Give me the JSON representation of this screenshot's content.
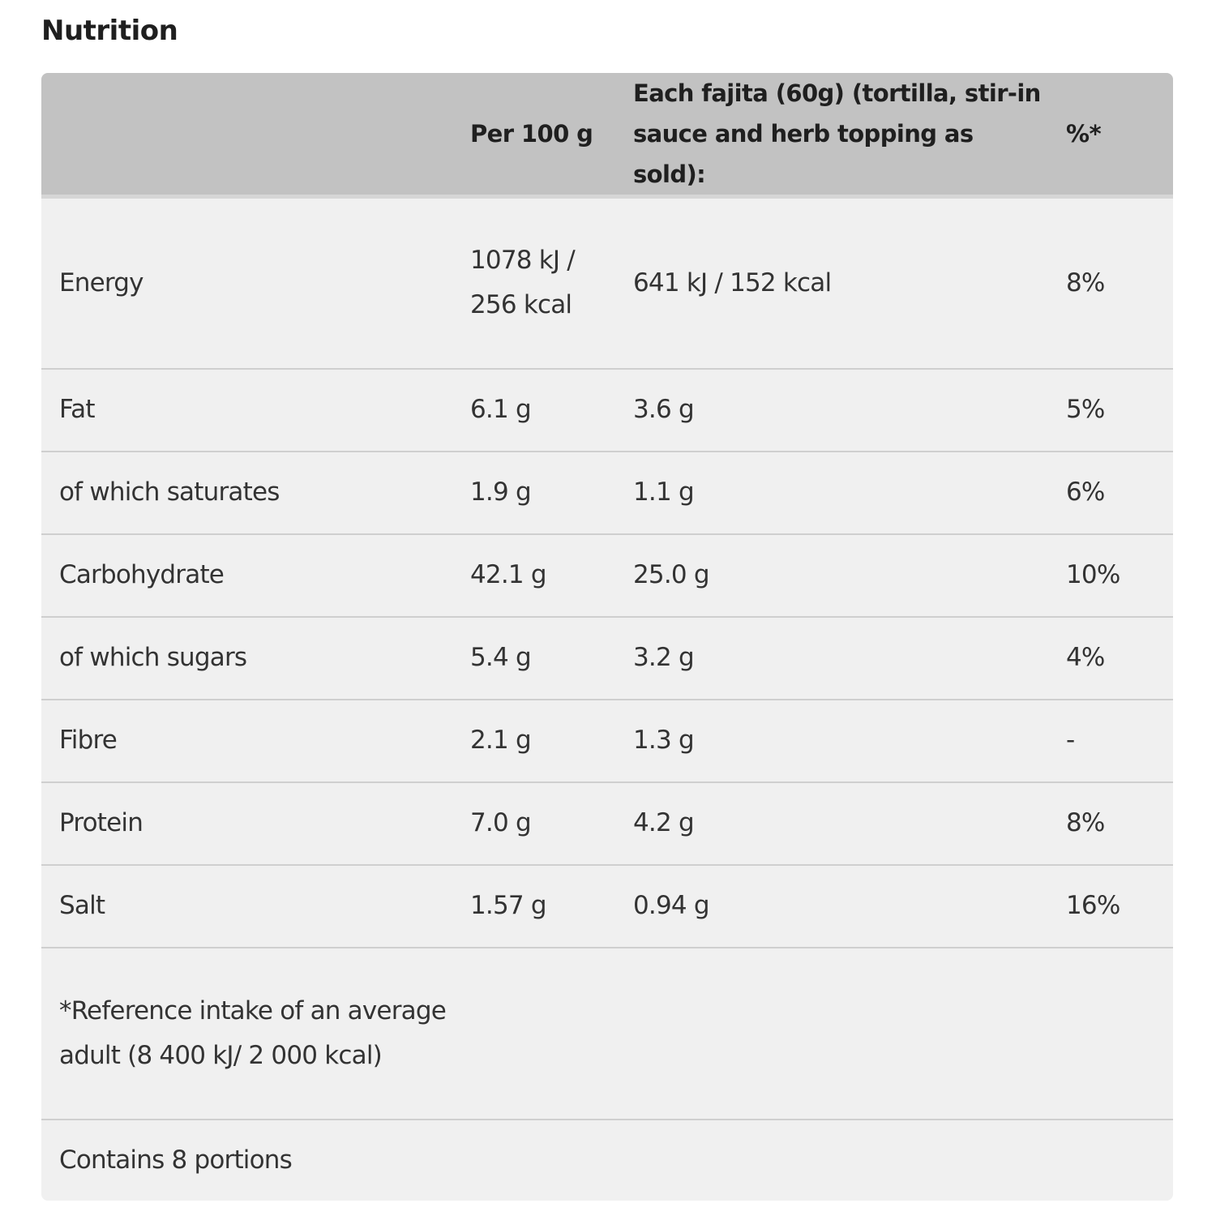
{
  "page": {
    "title": "Nutrition"
  },
  "table": {
    "headers": {
      "nutrient": "",
      "per100": "Per 100 g",
      "fajita": "Each fajita (60g) (tortilla, stir-in sauce and herb topping as sold):",
      "pct": "%*"
    },
    "rows": [
      {
        "nutrient": "Energy",
        "per100": "1078 kJ / 256 kcal",
        "fajita": "641 kJ / 152 kcal",
        "pct": "8%"
      },
      {
        "nutrient": "Fat",
        "per100": "6.1 g",
        "fajita": "3.6 g",
        "pct": "5%"
      },
      {
        "nutrient": "of which saturates",
        "per100": "1.9 g",
        "fajita": "1.1 g",
        "pct": "6%"
      },
      {
        "nutrient": "Carbohydrate",
        "per100": "42.1 g",
        "fajita": "25.0 g",
        "pct": "10%"
      },
      {
        "nutrient": "of which sugars",
        "per100": "5.4 g",
        "fajita": "3.2 g",
        "pct": "4%"
      },
      {
        "nutrient": "Fibre",
        "per100": "2.1 g",
        "fajita": "1.3 g",
        "pct": "-"
      },
      {
        "nutrient": "Protein",
        "per100": "7.0 g",
        "fajita": "4.2 g",
        "pct": "8%"
      },
      {
        "nutrient": "Salt",
        "per100": "1.57 g",
        "fajita": "0.94 g",
        "pct": "16%"
      }
    ],
    "reference_note": "*Reference intake of an average adult (8 400 kJ/ 2 000 kcal)",
    "portions_note": "Contains 8 portions"
  }
}
